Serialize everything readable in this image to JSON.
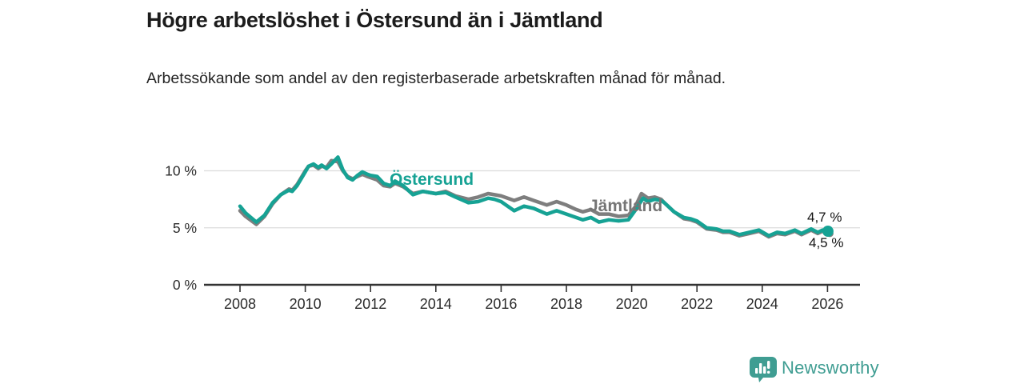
{
  "header": {
    "title": "Högre arbetslöshet i Östersund än i Jämtland",
    "subtitle": "Arbetssökande som andel av den registerbaserade arbetskraften månad för månad."
  },
  "chart_data": {
    "type": "line",
    "title": "Högre arbetslöshet i Östersund än i Jämtland",
    "subtitle": "Arbetssökande som andel av den registerbaserade arbetskraften månad för månad.",
    "unit": "%",
    "grid": "horizontal-only",
    "x_axis": {
      "ticks": [
        2008,
        2010,
        2012,
        2014,
        2016,
        2018,
        2020,
        2022,
        2024,
        2026
      ],
      "range": [
        2006.9,
        2027.0
      ]
    },
    "y_axis": {
      "ticks": [
        {
          "value": 0,
          "label": "0 %"
        },
        {
          "value": 5,
          "label": "5 %"
        },
        {
          "value": 10,
          "label": "10 %"
        }
      ],
      "range": [
        0,
        12.1
      ]
    },
    "colors": {
      "ostersund": "#16a294",
      "jamtland": "#7e7e7e",
      "grid": "#dcdcdc",
      "axis": "#333333",
      "tick_text": "#2b2b2b"
    },
    "series": [
      {
        "name": "Jämtland",
        "color": "#7e7e7e",
        "end_label": "4,5 %",
        "end_value": 4.5,
        "points": [
          [
            2008.0,
            6.5
          ],
          [
            2008.17,
            6.0
          ],
          [
            2008.5,
            5.3
          ],
          [
            2008.75,
            6.0
          ],
          [
            2009.0,
            7.1
          ],
          [
            2009.25,
            7.9
          ],
          [
            2009.5,
            8.4
          ],
          [
            2009.6,
            8.3
          ],
          [
            2009.75,
            8.8
          ],
          [
            2010.0,
            10.0
          ],
          [
            2010.1,
            10.4
          ],
          [
            2010.25,
            10.5
          ],
          [
            2010.4,
            10.2
          ],
          [
            2010.5,
            10.4
          ],
          [
            2010.65,
            10.3
          ],
          [
            2010.8,
            10.9
          ],
          [
            2011.0,
            10.8
          ],
          [
            2011.15,
            10.0
          ],
          [
            2011.3,
            9.5
          ],
          [
            2011.45,
            9.3
          ],
          [
            2011.6,
            9.5
          ],
          [
            2011.75,
            9.7
          ],
          [
            2011.9,
            9.5
          ],
          [
            2012.0,
            9.4
          ],
          [
            2012.2,
            9.2
          ],
          [
            2012.4,
            8.7
          ],
          [
            2012.6,
            8.6
          ],
          [
            2012.75,
            8.9
          ],
          [
            2013.0,
            8.6
          ],
          [
            2013.3,
            8.0
          ],
          [
            2013.6,
            8.2
          ],
          [
            2013.8,
            8.1
          ],
          [
            2014.0,
            8.0
          ],
          [
            2014.3,
            8.2
          ],
          [
            2014.6,
            7.8
          ],
          [
            2015.0,
            7.5
          ],
          [
            2015.3,
            7.7
          ],
          [
            2015.6,
            8.0
          ],
          [
            2015.8,
            7.9
          ],
          [
            2016.0,
            7.8
          ],
          [
            2016.4,
            7.4
          ],
          [
            2016.7,
            7.7
          ],
          [
            2017.0,
            7.4
          ],
          [
            2017.4,
            7.0
          ],
          [
            2017.7,
            7.3
          ],
          [
            2018.0,
            7.0
          ],
          [
            2018.3,
            6.6
          ],
          [
            2018.5,
            6.4
          ],
          [
            2018.75,
            6.6
          ],
          [
            2019.0,
            6.2
          ],
          [
            2019.3,
            6.2
          ],
          [
            2019.6,
            6.0
          ],
          [
            2019.9,
            6.1
          ],
          [
            2020.1,
            6.8
          ],
          [
            2020.3,
            8.0
          ],
          [
            2020.5,
            7.6
          ],
          [
            2020.7,
            7.7
          ],
          [
            2020.9,
            7.5
          ],
          [
            2021.0,
            7.2
          ],
          [
            2021.3,
            6.4
          ],
          [
            2021.6,
            5.8
          ],
          [
            2021.8,
            5.7
          ],
          [
            2022.0,
            5.5
          ],
          [
            2022.3,
            4.9
          ],
          [
            2022.6,
            4.8
          ],
          [
            2022.8,
            4.6
          ],
          [
            2023.0,
            4.6
          ],
          [
            2023.3,
            4.3
          ],
          [
            2023.6,
            4.5
          ],
          [
            2023.9,
            4.7
          ],
          [
            2024.2,
            4.2
          ],
          [
            2024.45,
            4.5
          ],
          [
            2024.7,
            4.4
          ],
          [
            2025.0,
            4.7
          ],
          [
            2025.2,
            4.4
          ],
          [
            2025.5,
            4.8
          ],
          [
            2025.7,
            4.5
          ],
          [
            2025.85,
            4.7
          ],
          [
            2026.0,
            4.5
          ]
        ]
      },
      {
        "name": "Östersund",
        "color": "#16a294",
        "end_label": "4,7 %",
        "end_value": 4.7,
        "points": [
          [
            2008.0,
            6.9
          ],
          [
            2008.17,
            6.3
          ],
          [
            2008.5,
            5.5
          ],
          [
            2008.75,
            6.1
          ],
          [
            2009.0,
            7.2
          ],
          [
            2009.25,
            7.9
          ],
          [
            2009.5,
            8.3
          ],
          [
            2009.6,
            8.2
          ],
          [
            2009.75,
            8.7
          ],
          [
            2010.0,
            9.9
          ],
          [
            2010.1,
            10.4
          ],
          [
            2010.25,
            10.6
          ],
          [
            2010.4,
            10.3
          ],
          [
            2010.5,
            10.5
          ],
          [
            2010.65,
            10.2
          ],
          [
            2010.8,
            10.6
          ],
          [
            2011.0,
            11.2
          ],
          [
            2011.15,
            10.1
          ],
          [
            2011.3,
            9.4
          ],
          [
            2011.45,
            9.2
          ],
          [
            2011.6,
            9.6
          ],
          [
            2011.75,
            9.9
          ],
          [
            2011.9,
            9.7
          ],
          [
            2012.0,
            9.6
          ],
          [
            2012.2,
            9.5
          ],
          [
            2012.4,
            8.9
          ],
          [
            2012.6,
            8.7
          ],
          [
            2012.75,
            9.1
          ],
          [
            2013.0,
            8.7
          ],
          [
            2013.3,
            7.9
          ],
          [
            2013.6,
            8.2
          ],
          [
            2013.8,
            8.1
          ],
          [
            2014.0,
            8.0
          ],
          [
            2014.3,
            8.1
          ],
          [
            2014.6,
            7.7
          ],
          [
            2015.0,
            7.2
          ],
          [
            2015.3,
            7.3
          ],
          [
            2015.6,
            7.6
          ],
          [
            2015.8,
            7.5
          ],
          [
            2016.0,
            7.3
          ],
          [
            2016.4,
            6.5
          ],
          [
            2016.7,
            6.9
          ],
          [
            2017.0,
            6.7
          ],
          [
            2017.4,
            6.2
          ],
          [
            2017.7,
            6.5
          ],
          [
            2018.0,
            6.2
          ],
          [
            2018.3,
            5.9
          ],
          [
            2018.5,
            5.7
          ],
          [
            2018.75,
            5.9
          ],
          [
            2019.0,
            5.5
          ],
          [
            2019.3,
            5.7
          ],
          [
            2019.6,
            5.6
          ],
          [
            2019.9,
            5.7
          ],
          [
            2020.1,
            6.5
          ],
          [
            2020.35,
            7.6
          ],
          [
            2020.5,
            7.3
          ],
          [
            2020.7,
            7.5
          ],
          [
            2020.9,
            7.4
          ],
          [
            2021.0,
            7.2
          ],
          [
            2021.3,
            6.4
          ],
          [
            2021.6,
            5.9
          ],
          [
            2021.8,
            5.8
          ],
          [
            2022.0,
            5.6
          ],
          [
            2022.3,
            5.0
          ],
          [
            2022.6,
            4.9
          ],
          [
            2022.8,
            4.7
          ],
          [
            2023.0,
            4.7
          ],
          [
            2023.3,
            4.4
          ],
          [
            2023.6,
            4.6
          ],
          [
            2023.9,
            4.8
          ],
          [
            2024.2,
            4.3
          ],
          [
            2024.45,
            4.6
          ],
          [
            2024.7,
            4.5
          ],
          [
            2025.0,
            4.8
          ],
          [
            2025.2,
            4.5
          ],
          [
            2025.5,
            4.9
          ],
          [
            2025.7,
            4.6
          ],
          [
            2025.85,
            4.8
          ],
          [
            2026.0,
            4.7
          ]
        ]
      }
    ],
    "annotations": {
      "ostersund_label": "Östersund",
      "jamtland_label": "Jämtland",
      "end_label_top": "4,7 %",
      "end_label_bottom": "4,5 %"
    },
    "legend_position": "inline-labels"
  },
  "footer": {
    "brand": "Newsworthy",
    "brand_color": "#3f9d92"
  }
}
